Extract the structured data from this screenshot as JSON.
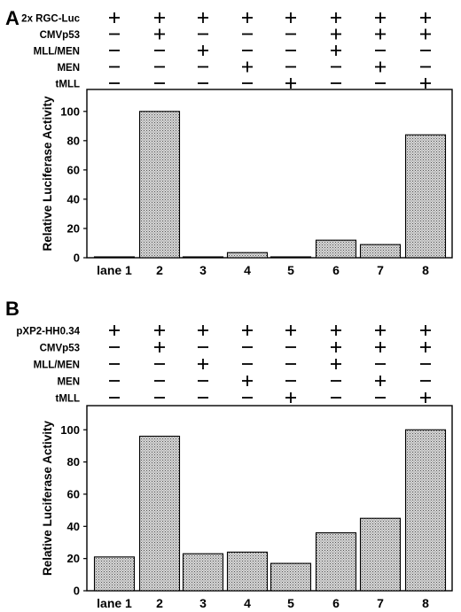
{
  "panels": [
    {
      "letter": "A",
      "rows": [
        {
          "label": "2x RGC-Luc",
          "signs": [
            "+",
            "+",
            "+",
            "+",
            "+",
            "+",
            "+",
            "+"
          ]
        },
        {
          "label": "CMVp53",
          "signs": [
            "−",
            "+",
            "−",
            "−",
            "−",
            "+",
            "+",
            "+"
          ]
        },
        {
          "label": "MLL/MEN",
          "signs": [
            "−",
            "−",
            "+",
            "−",
            "−",
            "+",
            "−",
            "−"
          ]
        },
        {
          "label": "MEN",
          "signs": [
            "−",
            "−",
            "−",
            "+",
            "−",
            "−",
            "+",
            "−"
          ]
        },
        {
          "label": "tMLL",
          "signs": [
            "−",
            "−",
            "−",
            "−",
            "+",
            "−",
            "−",
            "+"
          ]
        }
      ],
      "chart_data": {
        "type": "bar",
        "categories": [
          "lane 1",
          "2",
          "3",
          "4",
          "5",
          "6",
          "7",
          "8"
        ],
        "values": [
          0.5,
          100,
          0.5,
          3.5,
          0.5,
          12,
          9,
          84
        ],
        "ylabel": "Relative Luciferase Activity",
        "yticks": [
          0,
          20,
          40,
          60,
          80,
          100
        ],
        "ylim": [
          0,
          115
        ],
        "grid": false,
        "bar_fill": "stippled gray"
      }
    },
    {
      "letter": "B",
      "rows": [
        {
          "label": "pXP2-HH0.34",
          "signs": [
            "+",
            "+",
            "+",
            "+",
            "+",
            "+",
            "+",
            "+"
          ]
        },
        {
          "label": "CMVp53",
          "signs": [
            "−",
            "+",
            "−",
            "−",
            "−",
            "+",
            "+",
            "+"
          ]
        },
        {
          "label": "MLL/MEN",
          "signs": [
            "−",
            "−",
            "+",
            "−",
            "−",
            "+",
            "−",
            "−"
          ]
        },
        {
          "label": "MEN",
          "signs": [
            "−",
            "−",
            "−",
            "+",
            "−",
            "−",
            "+",
            "−"
          ]
        },
        {
          "label": "tMLL",
          "signs": [
            "−",
            "−",
            "−",
            "−",
            "+",
            "−",
            "−",
            "+"
          ]
        }
      ],
      "chart_data": {
        "type": "bar",
        "categories": [
          "lane 1",
          "2",
          "3",
          "4",
          "5",
          "6",
          "7",
          "8"
        ],
        "values": [
          21,
          96,
          23,
          24,
          17,
          36,
          45,
          100
        ],
        "ylabel": "Relative Luciferase Activity",
        "yticks": [
          0,
          20,
          40,
          60,
          80,
          100
        ],
        "ylim": [
          0,
          115
        ],
        "grid": false,
        "bar_fill": "stippled gray"
      }
    }
  ]
}
